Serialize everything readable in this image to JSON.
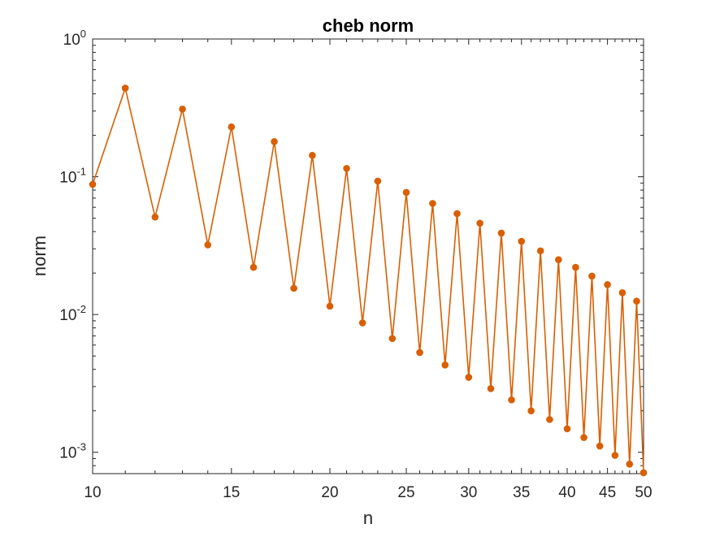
{
  "chart_data": {
    "type": "line",
    "title": "cheb norm",
    "xlabel": "n",
    "ylabel": "norm",
    "xscale": "log",
    "yscale": "log",
    "xlim": [
      10,
      50
    ],
    "ylim": [
      0.0007,
      1
    ],
    "xticks": [
      10,
      15,
      20,
      25,
      30,
      35,
      40,
      45,
      50
    ],
    "xtick_labels": [
      "10",
      "15",
      "20",
      "25",
      "30",
      "35",
      "40",
      "45",
      "50"
    ],
    "yticks": [
      0.001,
      0.01,
      0.1,
      1
    ],
    "ytick_labels": [
      {
        "base": "10",
        "exp": "-3"
      },
      {
        "base": "10",
        "exp": "-2"
      },
      {
        "base": "10",
        "exp": "-1"
      },
      {
        "base": "10",
        "exp": "0"
      }
    ],
    "grid": false,
    "box": true,
    "colors": {
      "line": "#D95F02",
      "marker": "#D95F02",
      "axes": "#262626"
    },
    "series": [
      {
        "marker": "filled-circle",
        "x": [
          10,
          11,
          12,
          13,
          14,
          15,
          16,
          17,
          18,
          19,
          20,
          21,
          22,
          23,
          24,
          25,
          26,
          27,
          28,
          29,
          30,
          31,
          32,
          33,
          34,
          35,
          36,
          37,
          38,
          39,
          40,
          41,
          42,
          43,
          44,
          45,
          46,
          47,
          48,
          49,
          50
        ],
        "y": [
          0.088,
          0.44,
          0.051,
          0.31,
          0.032,
          0.23,
          0.022,
          0.18,
          0.0155,
          0.143,
          0.0115,
          0.115,
          0.0087,
          0.093,
          0.0067,
          0.077,
          0.0053,
          0.064,
          0.0043,
          0.054,
          0.0035,
          0.046,
          0.0029,
          0.039,
          0.0024,
          0.034,
          0.002,
          0.029,
          0.00173,
          0.025,
          0.00148,
          0.022,
          0.00128,
          0.019,
          0.00111,
          0.0165,
          0.00095,
          0.0144,
          0.00082,
          0.0125,
          0.00071
        ]
      }
    ]
  }
}
